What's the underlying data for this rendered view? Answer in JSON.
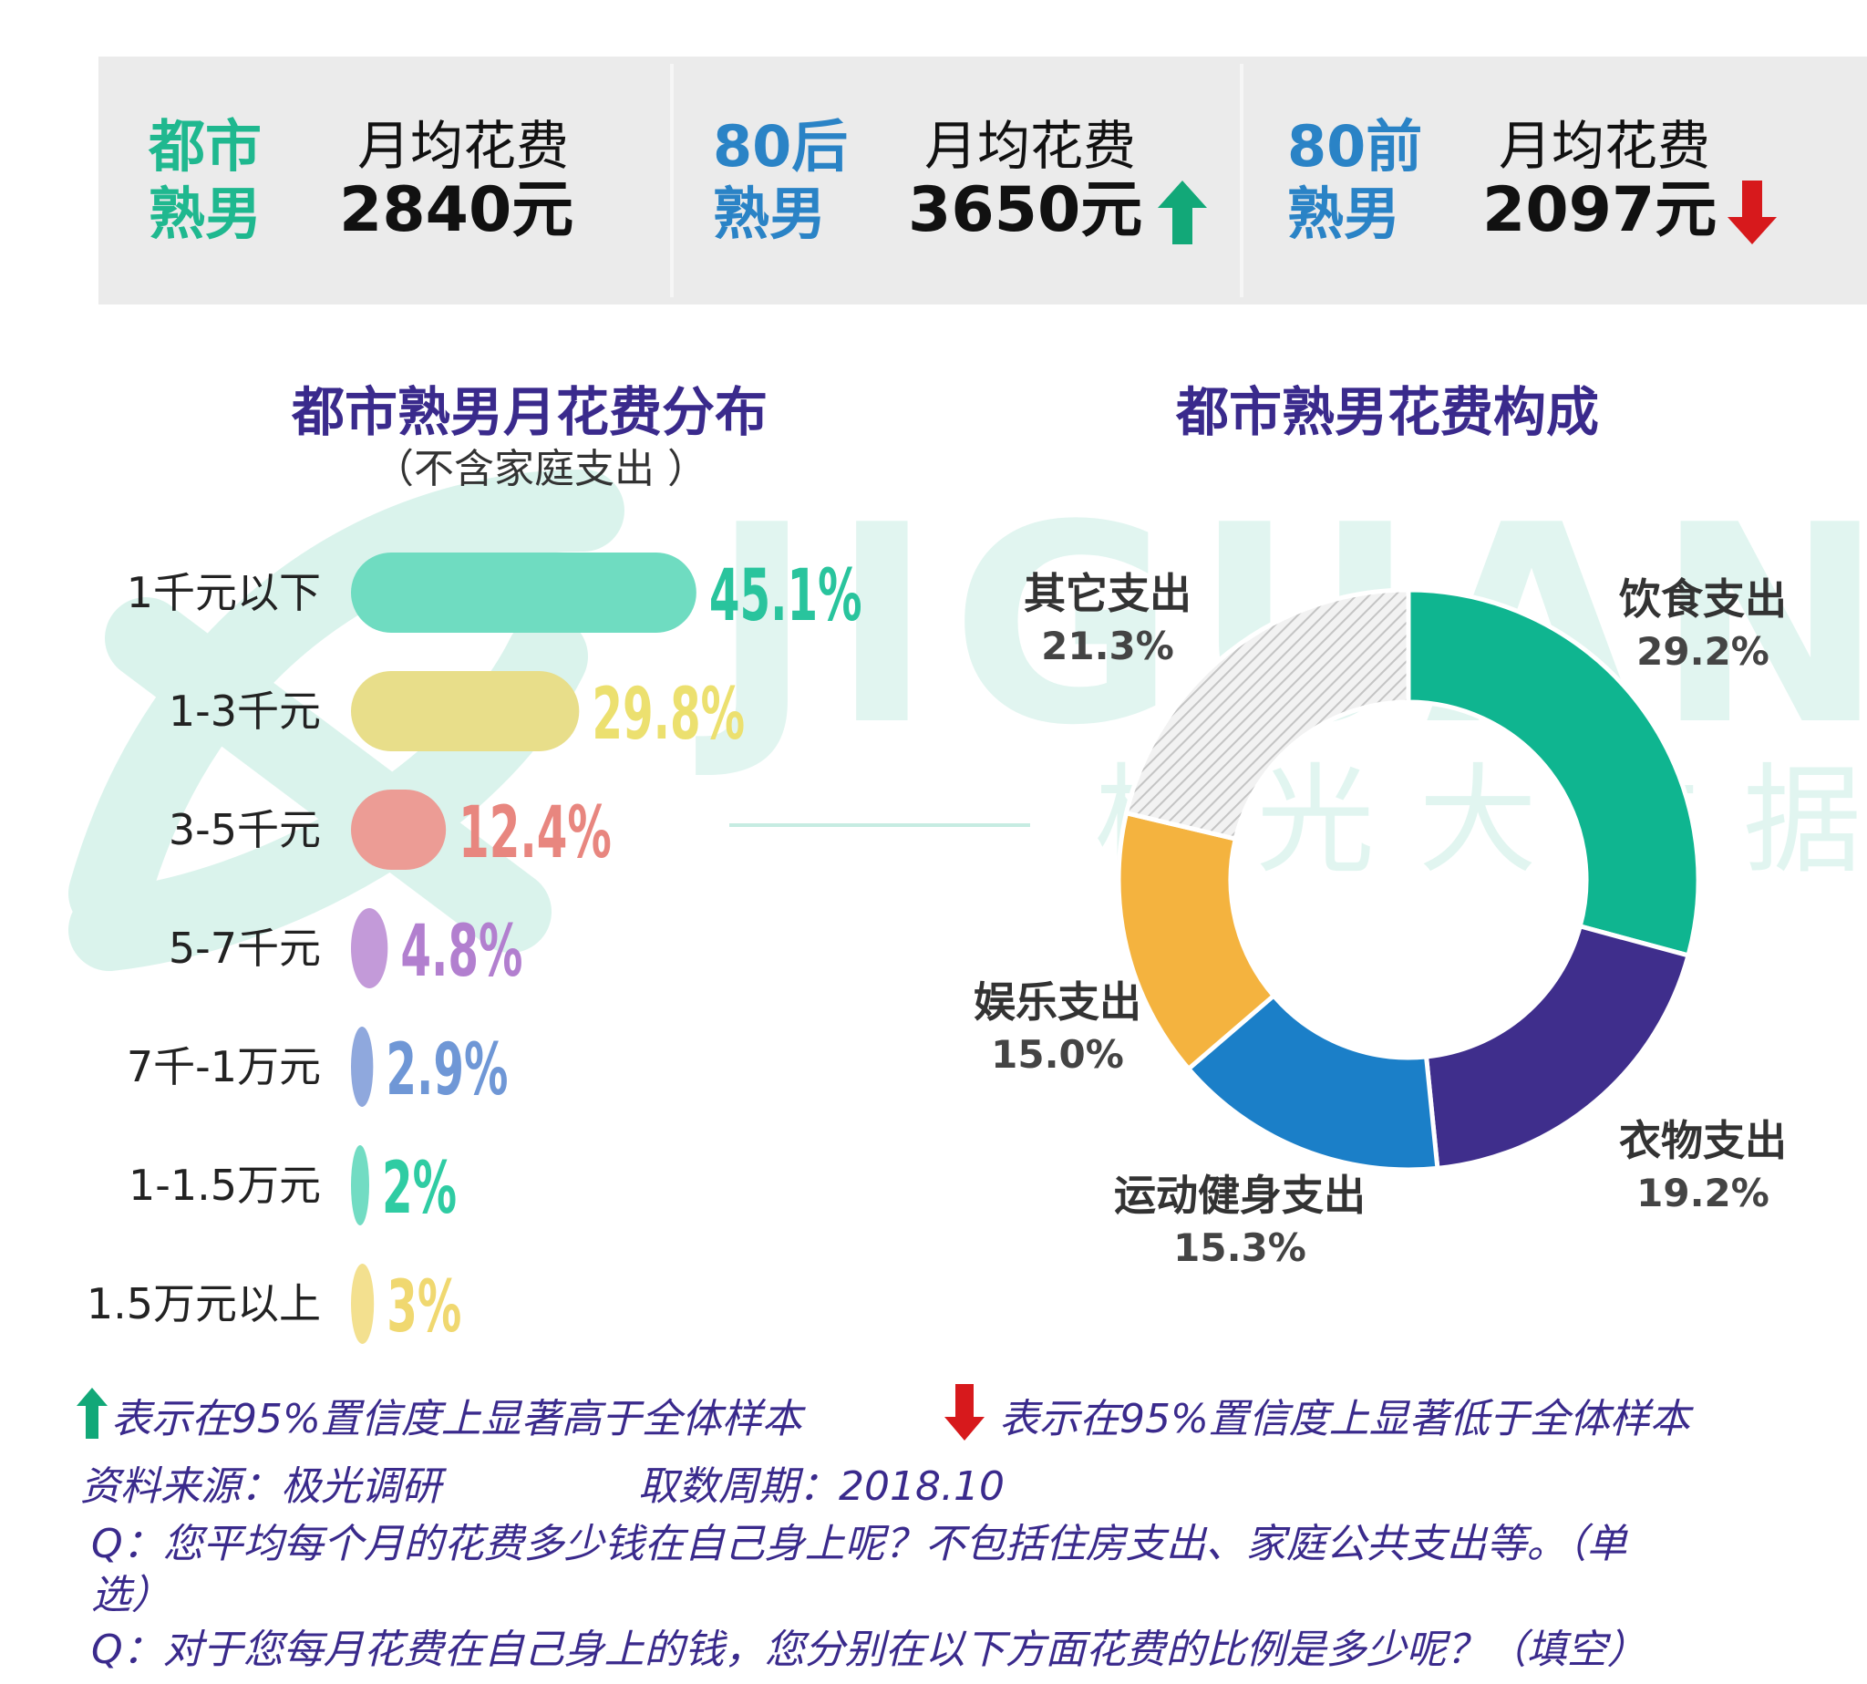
{
  "colors": {
    "green": "#1fb88f",
    "blue": "#2a83c6",
    "purple": "#3a2a8c",
    "up_arrow": "#12a878",
    "down_arrow": "#d7191c"
  },
  "stats": [
    {
      "label_line1": "都市",
      "label_line2": "熟男",
      "label_color": "#1fb88f",
      "word": "月均花费",
      "value": "2840元",
      "arrow": ""
    },
    {
      "label_line1": "80后",
      "label_line2": "熟男",
      "label_color": "#2a83c6",
      "word": "月均花费",
      "value": "3650元",
      "arrow": "up"
    },
    {
      "label_line1": "80前",
      "label_line2": "熟男",
      "label_color": "#2a83c6",
      "word": "月均花费",
      "value": "2097元",
      "arrow": "down"
    }
  ],
  "watermark": {
    "latin": "JIGUANG",
    "cn": "极光大数据"
  },
  "bar_title": "都市熟男月花费分布",
  "bar_subtitle": "（不含家庭支出 ）",
  "donut_title": "都市熟男花费构成",
  "chart_data": [
    {
      "type": "bar",
      "orientation": "horizontal",
      "categories": [
        "1千元以下",
        "1-3千元",
        "3-5千元",
        "5-7千元",
        "7千-1万元",
        "1-1.5万元",
        "1.5万元以上"
      ],
      "values": [
        45.1,
        29.8,
        12.4,
        4.8,
        2.9,
        2,
        3
      ],
      "value_labels": [
        "45.1%",
        "29.8%",
        "12.4%",
        "4.8%",
        "2.9%",
        "2%",
        "3%"
      ],
      "colors": [
        "#6fdcc1",
        "#e8de8a",
        "#ec9c95",
        "#c39ad9",
        "#8fa8dd",
        "#72dcc3",
        "#f3e08f"
      ],
      "label_colors": [
        "#29c49d",
        "#ece06f",
        "#e8867f",
        "#b27fcf",
        "#6f97d6",
        "#2fcca3",
        "#f0d870"
      ]
    },
    {
      "type": "pie",
      "style": "donut",
      "start": "top, clockwise",
      "slices": [
        {
          "name": "饮食支出",
          "value": 29.2,
          "label": "29.2%",
          "color": "#0fb590"
        },
        {
          "name": "衣物支出",
          "value": 19.2,
          "label": "19.2%",
          "color": "#3f2e8c"
        },
        {
          "name": "运动健身支出",
          "value": 15.3,
          "label": "15.3%",
          "color": "#1b7fc8"
        },
        {
          "name": "娱乐支出",
          "value": 15.0,
          "label": "15.0%",
          "color": "#f4b33f"
        },
        {
          "name": "其它支出",
          "value": 21.3,
          "label": "21.3%",
          "color": "#d9d9d9",
          "pattern": "hatched"
        }
      ]
    }
  ],
  "footer": {
    "legend_up": "表示在95%置信度上显著高于全体样本",
    "legend_down": "表示在95%置信度上显著低于全体样本",
    "source": "资料来源：极光调研",
    "period": "取数周期：2018.10",
    "q1_line1": "Q：您平均每个月的花费多少钱在自己身上呢？不包括住房支出、家庭公共支出等。（单",
    "q1_line2": "选）",
    "q2": "Q：对于您每月花费在自己身上的钱，您分别在以下方面花费的比例是多少呢？（填空）"
  }
}
